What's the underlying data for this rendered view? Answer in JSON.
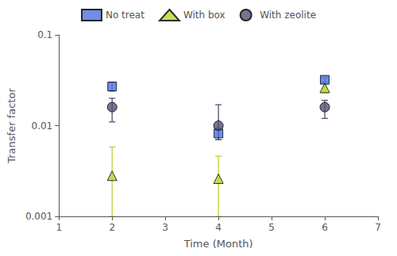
{
  "chart_data": {
    "type": "scatter",
    "xlabel": "Time (Month)",
    "ylabel": "Transfer factor",
    "x": [
      2,
      4,
      6
    ],
    "series": [
      {
        "name": "No treat",
        "marker": "square",
        "values": [
          0.027,
          0.0082,
          0.032
        ],
        "errors": [
          0.003,
          0.0012,
          0.0018
        ]
      },
      {
        "name": "With box",
        "marker": "triangle",
        "values": [
          0.0028,
          0.0026,
          0.026
        ],
        "error_plus": [
          0.003,
          0.002,
          0.003
        ],
        "error_minus": [
          0.0018,
          0.0016,
          0.003
        ]
      },
      {
        "name": "With zeolite",
        "marker": "circle",
        "values": [
          0.016,
          0.01,
          0.016
        ],
        "error_plus": [
          0.004,
          0.007,
          0.003
        ],
        "error_minus": [
          0.005,
          0.003,
          0.004
        ]
      }
    ],
    "xlim": [
      1,
      7
    ],
    "xticks": [
      1,
      2,
      3,
      4,
      5,
      6,
      7
    ],
    "ylim": [
      0.001,
      0.1
    ],
    "yticks": [
      0.001,
      0.01,
      0.1
    ],
    "log": "y",
    "grid": false,
    "legend": "top"
  }
}
